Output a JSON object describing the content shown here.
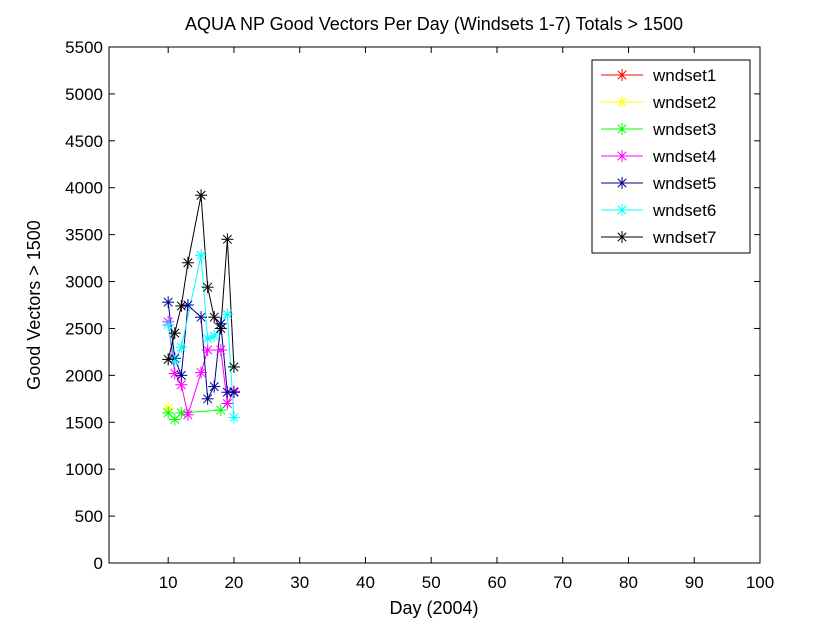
{
  "chart_data": {
    "type": "line",
    "title": "AQUA NP Good Vectors Per Day (Windsets 1-7) Totals > 1500",
    "xlabel": "Day (2004)",
    "ylabel": "Good Vectors > 1500",
    "xlim": [
      1,
      100
    ],
    "ylim": [
      0,
      5500
    ],
    "xticks": [
      10,
      20,
      30,
      40,
      50,
      60,
      70,
      80,
      90,
      100
    ],
    "yticks": [
      0,
      500,
      1000,
      1500,
      2000,
      2500,
      3000,
      3500,
      4000,
      4500,
      5000,
      5500
    ],
    "grid": false,
    "legend_position": "top-right",
    "marker": "asterisk",
    "series": [
      {
        "name": "wndset1",
        "color": "#ff0000",
        "points": []
      },
      {
        "name": "wndset2",
        "color": "#ffff00",
        "points": [
          [
            10,
            1650
          ]
        ]
      },
      {
        "name": "wndset3",
        "color": "#00ff00",
        "points": [
          [
            10,
            1600
          ],
          [
            11,
            1530
          ],
          [
            12,
            1600
          ],
          [
            18,
            1630
          ]
        ]
      },
      {
        "name": "wndset4",
        "color": "#ff00ff",
        "points": [
          [
            10,
            2570
          ],
          [
            11,
            2020
          ],
          [
            12,
            1900
          ],
          [
            13,
            1580
          ],
          [
            15,
            2030
          ],
          [
            16,
            2270
          ],
          [
            18,
            2270
          ],
          [
            19,
            1700
          ],
          [
            20,
            1830
          ]
        ]
      },
      {
        "name": "wndset5",
        "color": "#00008b",
        "points": [
          [
            10,
            2780
          ],
          [
            11,
            2180
          ],
          [
            12,
            2000
          ],
          [
            13,
            2750
          ],
          [
            15,
            2620
          ],
          [
            16,
            1750
          ],
          [
            17,
            1880
          ],
          [
            18,
            2550
          ],
          [
            19,
            1820
          ],
          [
            20,
            1820
          ]
        ]
      },
      {
        "name": "wndset6",
        "color": "#00ffff",
        "points": [
          [
            10,
            2540
          ],
          [
            11,
            2150
          ],
          [
            12,
            2300
          ],
          [
            15,
            3280
          ],
          [
            16,
            2390
          ],
          [
            17,
            2420
          ],
          [
            19,
            2650
          ],
          [
            20,
            1550
          ]
        ]
      },
      {
        "name": "wndset7",
        "color": "#000000",
        "points": [
          [
            10,
            2170
          ],
          [
            11,
            2450
          ],
          [
            12,
            2740
          ],
          [
            13,
            3200
          ],
          [
            15,
            3920
          ],
          [
            16,
            2940
          ],
          [
            17,
            2620
          ],
          [
            18,
            2500
          ],
          [
            19,
            3450
          ],
          [
            20,
            2090
          ]
        ]
      }
    ]
  }
}
